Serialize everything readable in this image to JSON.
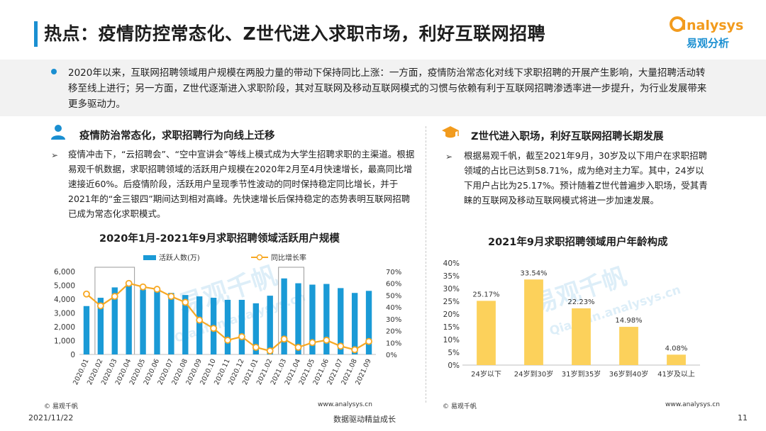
{
  "header": {
    "title": "热点：疫情防控常态化、Z世代进入求职市场，利好互联网招聘",
    "logo_text": "nalysys",
    "logo_cn": "易观分析",
    "accent": "#1a8fd1",
    "logo_color": "#f29b1d"
  },
  "summary": {
    "text": "2020年以来，互联网招聘领域用户规模在两股力量的带动下保持同比上涨：一方面，疫情防治常态化对线下求职招聘的开展产生影响，大量招聘活动转移至线上进行；另一方面，Z世代逐渐进入求职阶段，其对互联网及移动互联网模式的习惯与依赖有利于互联网招聘渗透率进一步提升，为行业发展带来更多驱动力。"
  },
  "left": {
    "section_title": "疫情防治常态化，求职招聘行为向线上迁移",
    "section_icon": "person-icon",
    "bullet_marker": "➢",
    "bullet_text": "疫情冲击下，“云招聘会”、“空中宣讲会”等线上模式成为大学生招聘求职的主渠道。根据易观千帆数据，求职招聘领域的活跃用户规模在2020年2月至4月快速增长，最高同比增速接近60%。后疫情阶段，活跃用户呈现季节性波动的同时保持稳定同比增长，并于2021年的“金三银四”期间达到相对高峰。先快速增长后保持稳定的态势表明互联网招聘已成为常态化求职模式。",
    "footer_left": "© 易观千帆",
    "footer_right": "www.analysys.cn",
    "watermark": "易观千帆",
    "watermark_sub": "Qianfan.analysys.cn"
  },
  "right": {
    "section_title": "Z世代进入职场，利好互联网招聘长期发展",
    "section_icon": "graduation-cap-icon",
    "bullet_marker": "➢",
    "bullet_text": "根据易观千帆，截至2021年9月，30岁及以下用户在求职招聘领域的占比已达到58.71%，成为绝对主力军。其中，24岁以下用户占比为25.17%。预计随着Z世代普遍步入职场，受其青睐的互联网及移动互联网模式将进一步加速发展。",
    "footer_left": "© 易观千帆",
    "footer_right": "www.analysys.cn",
    "watermark": "易观千帆",
    "watermark_sub": "Qianfan.analysys.cn"
  },
  "footer": {
    "date": "2021/11/22",
    "slogan": "数据驱动精益成长",
    "page": "11"
  },
  "chart_data": [
    {
      "type": "bar+line",
      "title": "2020年1月-2021年9月求职招聘领域活跃用户规模",
      "categories": [
        "2020.01",
        "2020.02",
        "2020.03",
        "2020.04",
        "2020.05",
        "2020.06",
        "2020.07",
        "2020.08",
        "2020.09",
        "2020.10",
        "2020.11",
        "2020.12",
        "2021.01",
        "2021.02",
        "2021.03",
        "2021.04",
        "2021.05",
        "2021.06",
        "2021.07",
        "2021.08",
        "2021.09"
      ],
      "series": [
        {
          "name": "活跃人数(万)",
          "type": "bar",
          "axis": "left",
          "color": "#1a9ad6",
          "values": [
            3500,
            4100,
            4850,
            5200,
            4700,
            4650,
            4450,
            4300,
            4200,
            4100,
            3950,
            3950,
            3700,
            4250,
            5500,
            5150,
            5050,
            5100,
            4800,
            4450,
            4600
          ]
        },
        {
          "name": "同比增长率",
          "type": "line",
          "axis": "right",
          "color": "#f7a823",
          "values": [
            51,
            41,
            49,
            60,
            57,
            55,
            49,
            44,
            29,
            22,
            12,
            15,
            6,
            3,
            13,
            6,
            10,
            12,
            7,
            4,
            11
          ]
        }
      ],
      "y_left": {
        "min": 0,
        "max": 6000,
        "ticks": [
          "0",
          "1,000",
          "2,000",
          "3,000",
          "4,000",
          "5,000",
          "6,000"
        ]
      },
      "y_right": {
        "min": 0,
        "max": 70,
        "ticks": [
          "0%",
          "10%",
          "20%",
          "30%",
          "40%",
          "50%",
          "60%",
          "70%"
        ]
      },
      "highlight_ranges": [
        [
          "2020.02",
          "2020.04"
        ],
        [
          "2021.03",
          "2021.04"
        ]
      ],
      "legend": "top"
    },
    {
      "type": "bar",
      "title": "2021年9月求职招聘领域用户年龄构成",
      "categories": [
        "24岁以下",
        "24岁到30岁",
        "31岁到35岁",
        "36岁到40岁",
        "41岁及以上"
      ],
      "values": [
        25.17,
        33.54,
        22.23,
        14.98,
        4.08
      ],
      "data_labels": [
        "25.17%",
        "33.54%",
        "22.23%",
        "14.98%",
        "4.08%"
      ],
      "color": "#fcd15b",
      "y": {
        "min": 0,
        "max": 40,
        "ticks": [
          "0%",
          "5%",
          "10%",
          "15%",
          "20%",
          "25%",
          "30%",
          "35%",
          "40%"
        ]
      }
    }
  ]
}
